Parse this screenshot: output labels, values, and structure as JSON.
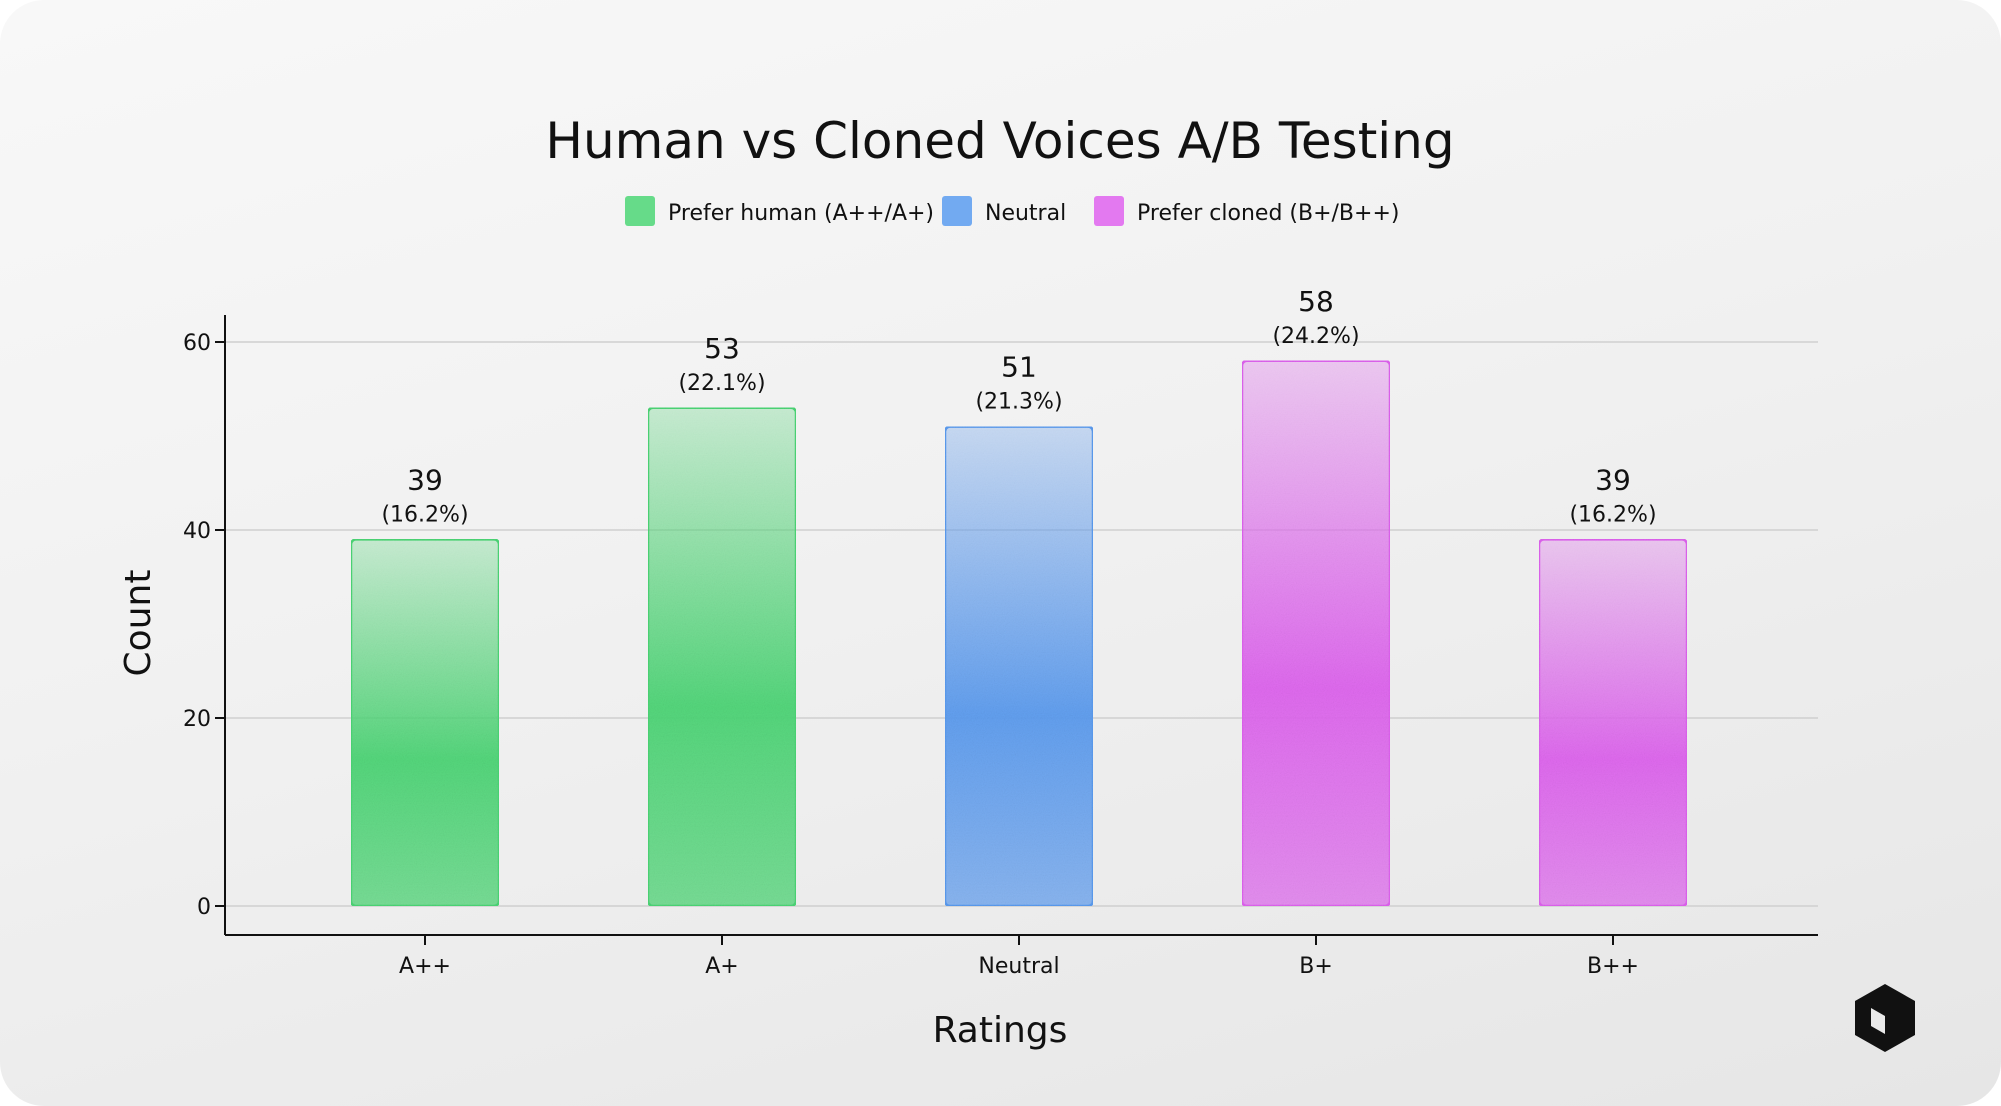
{
  "chart_data": {
    "type": "bar",
    "title": "Human vs Cloned Voices A/B Testing",
    "xlabel": "Ratings",
    "ylabel": "Count",
    "ylim": [
      0,
      63
    ],
    "yticks": [
      0,
      20,
      40,
      60
    ],
    "grid": true,
    "legend_position": "top",
    "categories": [
      "A++",
      "A+",
      "Neutral",
      "B+",
      "B++"
    ],
    "values": [
      39,
      53,
      51,
      58,
      39
    ],
    "value_labels": [
      "39",
      "53",
      "51",
      "58",
      "39"
    ],
    "percent_labels": [
      "(16.2%)",
      "(22.1%)",
      "(21.3%)",
      "(24.2%)",
      "(16.2%)"
    ],
    "bar_groups": [
      "human",
      "human",
      "neutral",
      "cloned",
      "cloned"
    ],
    "legend": [
      {
        "key": "human",
        "label": "Prefer human (A++/A+)",
        "color": "#4cd676"
      },
      {
        "key": "neutral",
        "label": "Neutral",
        "color": "#5b9cf0"
      },
      {
        "key": "cloned",
        "label": "Prefer cloned (B+/B++)",
        "color": "#df63ef"
      }
    ]
  },
  "logo": {
    "icon": "cube-logo-icon"
  }
}
